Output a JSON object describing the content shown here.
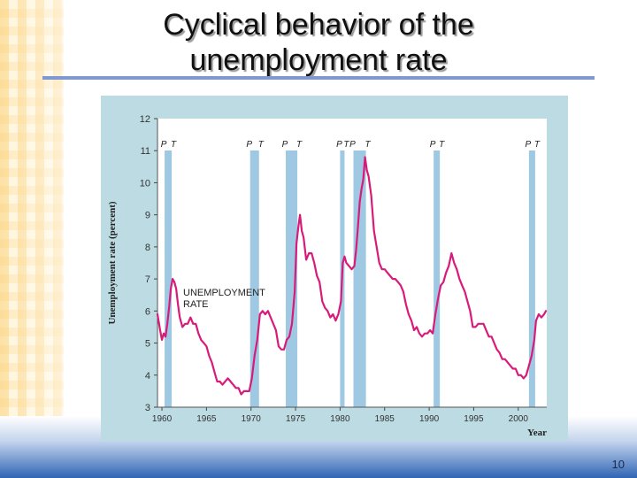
{
  "slide": {
    "title_line1": "Cyclical behavior of the",
    "title_line2": "unemployment rate",
    "page_number": "10"
  },
  "colors": {
    "title_rule": "#7f98cf",
    "panel_background": "#bcdbe3",
    "plot_background": "#ffffff",
    "recession_band": "#9fc8e2",
    "line": "#d81b7a"
  },
  "chart_data": {
    "type": "line",
    "ylabel": "Unemployment rate (percent)",
    "xlabel": "Year",
    "xlim": [
      1959.5,
      2003.2
    ],
    "ylim": [
      3,
      12
    ],
    "x_ticks": [
      1960,
      1965,
      1970,
      1975,
      1980,
      1985,
      1990,
      1995,
      2000
    ],
    "x_tick_labels": [
      "1960",
      "1965",
      "1970",
      "1975",
      "1980",
      "1985",
      "1990",
      "1995",
      "2000"
    ],
    "y_ticks": [
      3,
      4,
      5,
      6,
      7,
      8,
      9,
      10,
      11,
      12
    ],
    "y_tick_labels": [
      "3",
      "4",
      "5",
      "6",
      "7",
      "8",
      "9",
      "10",
      "11",
      "12"
    ],
    "annotation": "UNEMPLOYMENT RATE",
    "annotation_lines": [
      "UNEMPLOYMENT",
      "RATE"
    ],
    "recessions": [
      {
        "peak": 1960.3,
        "trough": 1961.1,
        "peak_label": "P",
        "trough_label": "T"
      },
      {
        "peak": 1969.9,
        "trough": 1970.9,
        "peak_label": "P",
        "trough_label": "T"
      },
      {
        "peak": 1973.9,
        "trough": 1975.2,
        "peak_label": "P",
        "trough_label": "T"
      },
      {
        "peak": 1980.0,
        "trough": 1980.5,
        "peak_label": "P",
        "trough_label": "T"
      },
      {
        "peak": 1981.5,
        "trough": 1982.9,
        "peak_label": "P",
        "trough_label": "T"
      },
      {
        "peak": 1990.5,
        "trough": 1991.2,
        "peak_label": "P",
        "trough_label": "T"
      },
      {
        "peak": 2001.2,
        "trough": 2001.9,
        "peak_label": "P",
        "trough_label": "T"
      }
    ],
    "series": [
      {
        "x": [
          1959.5,
          1959.8,
          1960.0,
          1960.2,
          1960.4,
          1960.6,
          1960.8,
          1961.0,
          1961.2,
          1961.4,
          1961.6,
          1961.8,
          1962.0,
          1962.3,
          1962.6,
          1962.9,
          1963.2,
          1963.5,
          1963.8,
          1964.1,
          1964.4,
          1964.7,
          1965.0,
          1965.3,
          1965.6,
          1965.9,
          1966.2,
          1966.5,
          1966.8,
          1967.1,
          1967.4,
          1967.7,
          1968.0,
          1968.3,
          1968.6,
          1968.9,
          1969.2,
          1969.5,
          1969.8,
          1970.1,
          1970.4,
          1970.7,
          1971.0,
          1971.3,
          1971.6,
          1971.9,
          1972.2,
          1972.5,
          1972.8,
          1973.1,
          1973.4,
          1973.7,
          1974.0,
          1974.3,
          1974.6,
          1974.9,
          1975.1,
          1975.3,
          1975.5,
          1975.7,
          1975.9,
          1976.2,
          1976.5,
          1976.8,
          1977.1,
          1977.4,
          1977.7,
          1978.0,
          1978.3,
          1978.6,
          1978.9,
          1979.2,
          1979.5,
          1979.8,
          1980.1,
          1980.3,
          1980.5,
          1980.7,
          1981.0,
          1981.3,
          1981.6,
          1981.8,
          1982.0,
          1982.2,
          1982.4,
          1982.6,
          1982.8,
          1983.0,
          1983.2,
          1983.5,
          1983.8,
          1984.1,
          1984.4,
          1984.7,
          1985.0,
          1985.3,
          1985.6,
          1985.9,
          1986.2,
          1986.5,
          1986.8,
          1987.1,
          1987.4,
          1987.7,
          1988.0,
          1988.3,
          1988.6,
          1988.9,
          1989.2,
          1989.5,
          1989.8,
          1990.1,
          1990.4,
          1990.7,
          1991.0,
          1991.3,
          1991.6,
          1991.9,
          1992.2,
          1992.5,
          1992.8,
          1993.1,
          1993.4,
          1993.7,
          1994.0,
          1994.3,
          1994.6,
          1994.9,
          1995.2,
          1995.5,
          1995.8,
          1996.1,
          1996.4,
          1996.7,
          1997.0,
          1997.3,
          1997.6,
          1997.9,
          1998.2,
          1998.5,
          1998.8,
          1999.1,
          1999.4,
          1999.7,
          2000.0,
          2000.3,
          2000.6,
          2000.9,
          2001.2,
          2001.5,
          2001.8,
          2002.0,
          2002.3,
          2002.6,
          2002.9,
          2003.1
        ],
        "y": [
          5.9,
          5.4,
          5.1,
          5.3,
          5.2,
          5.6,
          6.1,
          6.7,
          7.0,
          6.9,
          6.7,
          6.2,
          5.8,
          5.5,
          5.6,
          5.6,
          5.8,
          5.6,
          5.6,
          5.3,
          5.1,
          5.0,
          4.9,
          4.6,
          4.4,
          4.1,
          3.8,
          3.8,
          3.7,
          3.8,
          3.9,
          3.8,
          3.7,
          3.6,
          3.6,
          3.4,
          3.5,
          3.5,
          3.5,
          3.9,
          4.6,
          5.1,
          5.9,
          6.0,
          5.9,
          6.0,
          5.8,
          5.6,
          5.4,
          4.9,
          4.8,
          4.8,
          5.1,
          5.2,
          5.6,
          6.6,
          8.1,
          8.6,
          9.0,
          8.5,
          8.3,
          7.6,
          7.8,
          7.8,
          7.5,
          7.1,
          6.9,
          6.3,
          6.1,
          6.0,
          5.8,
          5.9,
          5.7,
          5.9,
          6.3,
          7.5,
          7.7,
          7.5,
          7.4,
          7.3,
          7.4,
          7.9,
          8.6,
          9.4,
          9.8,
          10.1,
          10.8,
          10.4,
          10.2,
          9.6,
          8.5,
          8.0,
          7.5,
          7.3,
          7.3,
          7.2,
          7.1,
          7.0,
          7.0,
          6.9,
          6.8,
          6.6,
          6.2,
          5.9,
          5.7,
          5.4,
          5.5,
          5.3,
          5.2,
          5.3,
          5.3,
          5.4,
          5.3,
          5.9,
          6.4,
          6.8,
          6.9,
          7.2,
          7.4,
          7.8,
          7.5,
          7.3,
          7.0,
          6.8,
          6.6,
          6.3,
          6.0,
          5.5,
          5.5,
          5.6,
          5.6,
          5.6,
          5.4,
          5.2,
          5.2,
          5.0,
          4.8,
          4.7,
          4.5,
          4.5,
          4.4,
          4.3,
          4.2,
          4.2,
          4.0,
          4.0,
          3.9,
          4.0,
          4.3,
          4.6,
          5.1,
          5.7,
          5.9,
          5.8,
          5.9,
          6.0
        ]
      }
    ]
  }
}
